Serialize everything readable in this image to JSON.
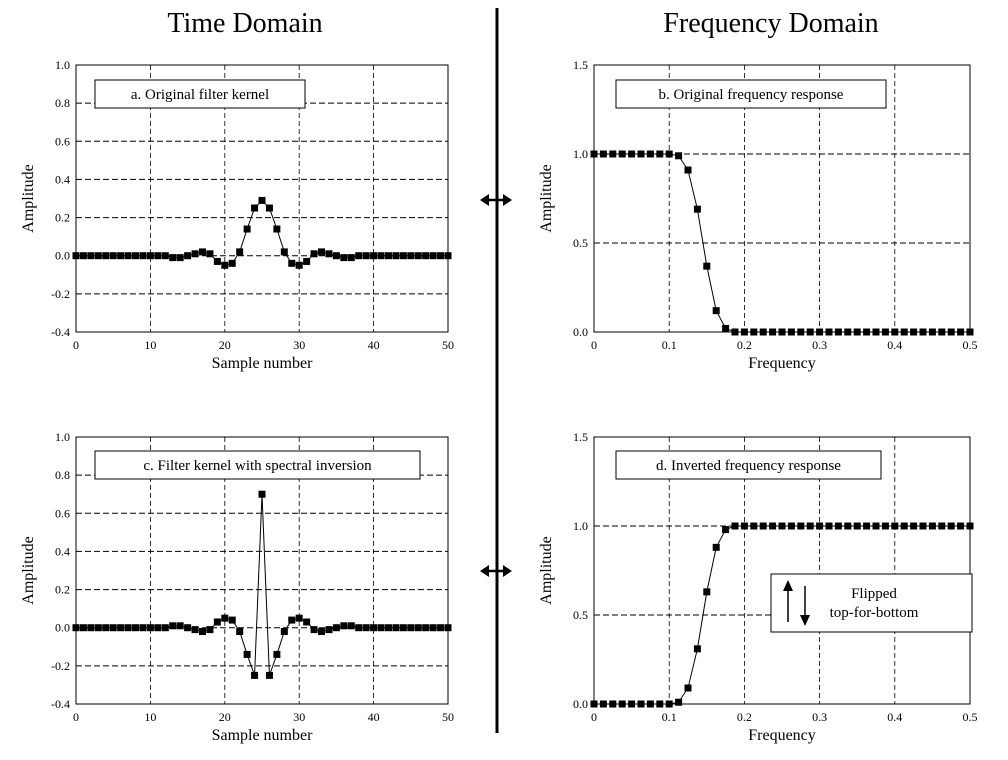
{
  "headings": {
    "left": "Time Domain",
    "right": "Frequency Domain"
  },
  "colors": {
    "ink": "#000000",
    "background": "#ffffff"
  },
  "chart_data": [
    {
      "id": "a",
      "type": "line",
      "markers": "square",
      "title": "a.  Original filter kernel",
      "xlabel": "Sample number",
      "ylabel": "Amplitude",
      "xlim": [
        0,
        50
      ],
      "ylim": [
        -0.4,
        1.0
      ],
      "xticks": [
        0,
        10,
        20,
        30,
        40,
        50
      ],
      "yticks": [
        -0.4,
        -0.2,
        0.0,
        0.2,
        0.4,
        0.6,
        0.8,
        1.0
      ],
      "grid": true,
      "x": [
        0,
        1,
        2,
        3,
        4,
        5,
        6,
        7,
        8,
        9,
        10,
        11,
        12,
        13,
        14,
        15,
        16,
        17,
        18,
        19,
        20,
        21,
        22,
        23,
        24,
        25,
        26,
        27,
        28,
        29,
        30,
        31,
        32,
        33,
        34,
        35,
        36,
        37,
        38,
        39,
        40,
        41,
        42,
        43,
        44,
        45,
        46,
        47,
        48,
        49,
        50
      ],
      "y": [
        0,
        0,
        0,
        0,
        0,
        0,
        0,
        0,
        0,
        0,
        0,
        0,
        0,
        -0.01,
        -0.01,
        0,
        0.01,
        0.02,
        0.01,
        -0.03,
        -0.05,
        -0.04,
        0.02,
        0.14,
        0.25,
        0.29,
        0.25,
        0.14,
        0.02,
        -0.04,
        -0.05,
        -0.03,
        0.01,
        0.02,
        0.01,
        0,
        -0.01,
        -0.01,
        0,
        0,
        0,
        0,
        0,
        0,
        0,
        0,
        0,
        0,
        0,
        0,
        0
      ]
    },
    {
      "id": "b",
      "type": "line",
      "markers": "square",
      "title": "b.  Original frequency response",
      "xlabel": "Frequency",
      "ylabel": "Amplitude",
      "xlim": [
        0,
        0.5
      ],
      "ylim": [
        0,
        1.5
      ],
      "xticks": [
        0,
        0.1,
        0.2,
        0.3,
        0.4,
        0.5
      ],
      "yticks": [
        0.0,
        0.5,
        1.0,
        1.5
      ],
      "grid": true,
      "x": [
        0,
        0.0125,
        0.025,
        0.0375,
        0.05,
        0.0625,
        0.075,
        0.0875,
        0.1,
        0.1125,
        0.125,
        0.1375,
        0.15,
        0.1625,
        0.175,
        0.1875,
        0.2,
        0.2125,
        0.225,
        0.2375,
        0.25,
        0.2625,
        0.275,
        0.2875,
        0.3,
        0.3125,
        0.325,
        0.3375,
        0.35,
        0.3625,
        0.375,
        0.3875,
        0.4,
        0.4125,
        0.425,
        0.4375,
        0.45,
        0.4625,
        0.475,
        0.4875,
        0.5
      ],
      "y": [
        1.0,
        1.0,
        1.0,
        1.0,
        1.0,
        1.0,
        1.0,
        1.0,
        1.0,
        0.99,
        0.91,
        0.69,
        0.37,
        0.12,
        0.02,
        0,
        0,
        0,
        0,
        0,
        0,
        0,
        0,
        0,
        0,
        0,
        0,
        0,
        0,
        0,
        0,
        0,
        0,
        0,
        0,
        0,
        0,
        0,
        0,
        0,
        0
      ]
    },
    {
      "id": "c",
      "type": "line",
      "markers": "square",
      "title": "c.  Filter kernel with spectral inversion",
      "xlabel": "Sample number",
      "ylabel": "Amplitude",
      "xlim": [
        0,
        50
      ],
      "ylim": [
        -0.4,
        1.0
      ],
      "xticks": [
        0,
        10,
        20,
        30,
        40,
        50
      ],
      "yticks": [
        -0.4,
        -0.2,
        0.0,
        0.2,
        0.4,
        0.6,
        0.8,
        1.0
      ],
      "grid": true,
      "x": [
        0,
        1,
        2,
        3,
        4,
        5,
        6,
        7,
        8,
        9,
        10,
        11,
        12,
        13,
        14,
        15,
        16,
        17,
        18,
        19,
        20,
        21,
        22,
        23,
        24,
        25,
        26,
        27,
        28,
        29,
        30,
        31,
        32,
        33,
        34,
        35,
        36,
        37,
        38,
        39,
        40,
        41,
        42,
        43,
        44,
        45,
        46,
        47,
        48,
        49,
        50
      ],
      "y": [
        0,
        0,
        0,
        0,
        0,
        0,
        0,
        0,
        0,
        0,
        0,
        0,
        0,
        0.01,
        0.01,
        0,
        -0.01,
        -0.02,
        -0.01,
        0.03,
        0.05,
        0.04,
        -0.02,
        -0.14,
        -0.25,
        0.7,
        -0.25,
        -0.14,
        -0.02,
        0.04,
        0.05,
        0.03,
        -0.01,
        -0.02,
        -0.01,
        0,
        0.01,
        0.01,
        0,
        0,
        0,
        0,
        0,
        0,
        0,
        0,
        0,
        0,
        0,
        0,
        0
      ]
    },
    {
      "id": "d",
      "type": "line",
      "markers": "square",
      "title": "d.  Inverted frequency response",
      "xlabel": "Frequency",
      "ylabel": "Amplitude",
      "xlim": [
        0,
        0.5
      ],
      "ylim": [
        0,
        1.5
      ],
      "xticks": [
        0,
        0.1,
        0.2,
        0.3,
        0.4,
        0.5
      ],
      "yticks": [
        0.0,
        0.5,
        1.0,
        1.5
      ],
      "grid": true,
      "x": [
        0,
        0.0125,
        0.025,
        0.0375,
        0.05,
        0.0625,
        0.075,
        0.0875,
        0.1,
        0.1125,
        0.125,
        0.1375,
        0.15,
        0.1625,
        0.175,
        0.1875,
        0.2,
        0.2125,
        0.225,
        0.2375,
        0.25,
        0.2625,
        0.275,
        0.2875,
        0.3,
        0.3125,
        0.325,
        0.3375,
        0.35,
        0.3625,
        0.375,
        0.3875,
        0.4,
        0.4125,
        0.425,
        0.4375,
        0.45,
        0.4625,
        0.475,
        0.4875,
        0.5
      ],
      "y": [
        0,
        0,
        0,
        0,
        0,
        0,
        0,
        0,
        0,
        0.01,
        0.09,
        0.31,
        0.63,
        0.88,
        0.98,
        1.0,
        1.0,
        1.0,
        1.0,
        1.0,
        1.0,
        1.0,
        1.0,
        1.0,
        1.0,
        1.0,
        1.0,
        1.0,
        1.0,
        1.0,
        1.0,
        1.0,
        1.0,
        1.0,
        1.0,
        1.0,
        1.0,
        1.0,
        1.0,
        1.0,
        1.0
      ],
      "annotation": {
        "line1": "Flipped",
        "line2": "top-for-bottom"
      }
    }
  ]
}
